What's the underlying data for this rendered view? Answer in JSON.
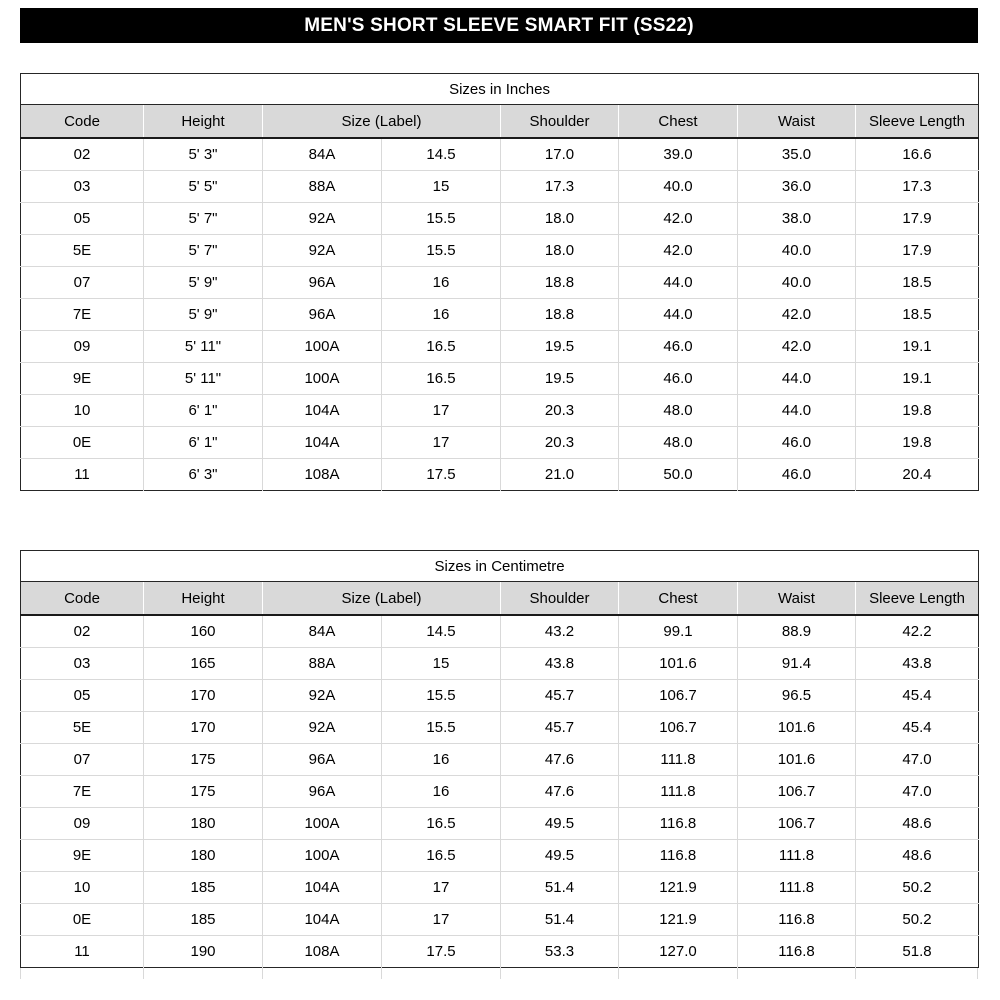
{
  "title": "MEN'S SHORT SLEEVE SMART FIT (SS22)",
  "colors": {
    "title_bar_bg": "#000000",
    "title_text": "#ffffff",
    "header_bg": "#d9d9d9",
    "grid_line": "#d9d9d9",
    "border": "#262626"
  },
  "columns": {
    "code": "Code",
    "height": "Height",
    "size_label": "Size (Label)",
    "shoulder": "Shoulder",
    "chest": "Chest",
    "waist": "Waist",
    "sleeve_length": "Sleeve Length"
  },
  "tables": [
    {
      "caption": "Sizes in Inches",
      "rows": [
        [
          "02",
          "5' 3\"",
          "84A",
          "14.5",
          "17.0",
          "39.0",
          "35.0",
          "16.6"
        ],
        [
          "03",
          "5' 5\"",
          "88A",
          "15",
          "17.3",
          "40.0",
          "36.0",
          "17.3"
        ],
        [
          "05",
          "5' 7\"",
          "92A",
          "15.5",
          "18.0",
          "42.0",
          "38.0",
          "17.9"
        ],
        [
          "5E",
          "5' 7\"",
          "92A",
          "15.5",
          "18.0",
          "42.0",
          "40.0",
          "17.9"
        ],
        [
          "07",
          "5' 9\"",
          "96A",
          "16",
          "18.8",
          "44.0",
          "40.0",
          "18.5"
        ],
        [
          "7E",
          "5' 9\"",
          "96A",
          "16",
          "18.8",
          "44.0",
          "42.0",
          "18.5"
        ],
        [
          "09",
          "5' 11\"",
          "100A",
          "16.5",
          "19.5",
          "46.0",
          "42.0",
          "19.1"
        ],
        [
          "9E",
          "5' 11\"",
          "100A",
          "16.5",
          "19.5",
          "46.0",
          "44.0",
          "19.1"
        ],
        [
          "10",
          "6' 1\"",
          "104A",
          "17",
          "20.3",
          "48.0",
          "44.0",
          "19.8"
        ],
        [
          "0E",
          "6' 1\"",
          "104A",
          "17",
          "20.3",
          "48.0",
          "46.0",
          "19.8"
        ],
        [
          "11",
          "6' 3\"",
          "108A",
          "17.5",
          "21.0",
          "50.0",
          "46.0",
          "20.4"
        ]
      ]
    },
    {
      "caption": "Sizes in Centimetre",
      "rows": [
        [
          "02",
          "160",
          "84A",
          "14.5",
          "43.2",
          "99.1",
          "88.9",
          "42.2"
        ],
        [
          "03",
          "165",
          "88A",
          "15",
          "43.8",
          "101.6",
          "91.4",
          "43.8"
        ],
        [
          "05",
          "170",
          "92A",
          "15.5",
          "45.7",
          "106.7",
          "96.5",
          "45.4"
        ],
        [
          "5E",
          "170",
          "92A",
          "15.5",
          "45.7",
          "106.7",
          "101.6",
          "45.4"
        ],
        [
          "07",
          "175",
          "96A",
          "16",
          "47.6",
          "111.8",
          "101.6",
          "47.0"
        ],
        [
          "7E",
          "175",
          "96A",
          "16",
          "47.6",
          "111.8",
          "106.7",
          "47.0"
        ],
        [
          "09",
          "180",
          "100A",
          "16.5",
          "49.5",
          "116.8",
          "106.7",
          "48.6"
        ],
        [
          "9E",
          "180",
          "100A",
          "16.5",
          "49.5",
          "116.8",
          "111.8",
          "48.6"
        ],
        [
          "10",
          "185",
          "104A",
          "17",
          "51.4",
          "121.9",
          "111.8",
          "50.2"
        ],
        [
          "0E",
          "185",
          "104A",
          "17",
          "51.4",
          "121.9",
          "116.8",
          "50.2"
        ],
        [
          "11",
          "190",
          "108A",
          "17.5",
          "53.3",
          "127.0",
          "116.8",
          "51.8"
        ]
      ]
    }
  ]
}
